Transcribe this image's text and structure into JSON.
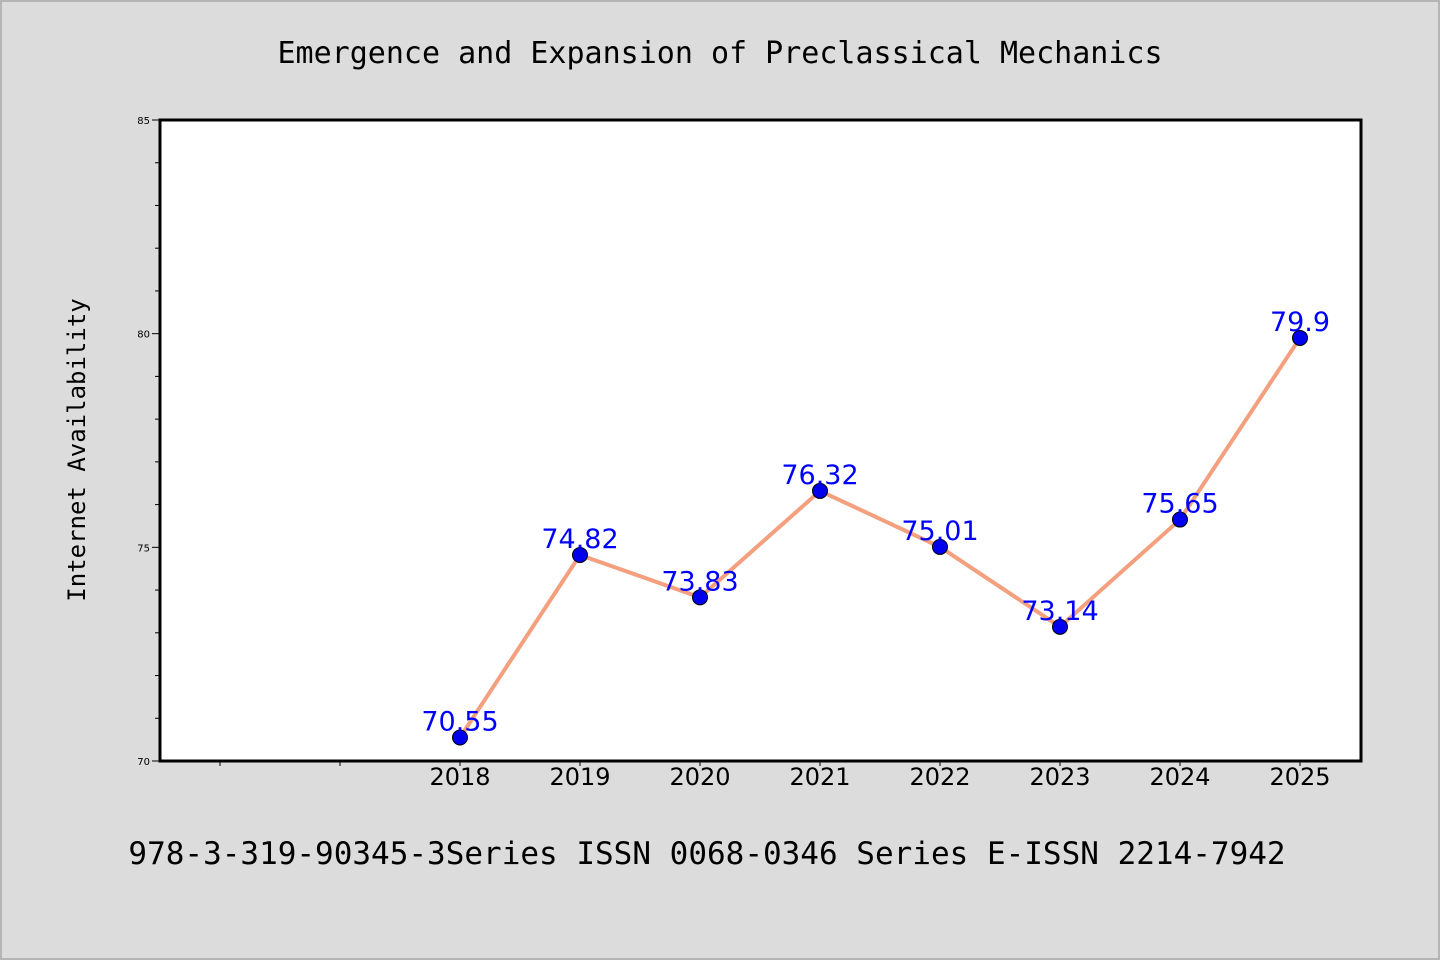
{
  "chart_data": {
    "type": "line",
    "title": "Emergence and Expansion of Preclassical Mechanics",
    "ylabel": "Internet Availability",
    "xlabel": "",
    "x": [
      "2018",
      "2019",
      "2020",
      "2021",
      "2022",
      "2023",
      "2024",
      "2025"
    ],
    "series": [
      {
        "values": [
          70.55,
          74.82,
          73.83,
          76.32,
          75.01,
          73.14,
          75.65,
          79.9
        ],
        "labels": [
          "70.55",
          "74.82",
          "73.83",
          "76.32",
          "75.01",
          "73.14",
          "75.65",
          "79.9"
        ],
        "line_color": "#f4a07e",
        "marker_color": "#0000ee"
      }
    ],
    "ylim": [
      70,
      85
    ],
    "yticks": [
      "70",
      "75",
      "80",
      "85"
    ],
    "grid": false,
    "legend": "none"
  },
  "footer": {
    "text": "978-3-319-90345-3Series ISSN 0068-0346 Series E-ISSN 2214-7942"
  }
}
